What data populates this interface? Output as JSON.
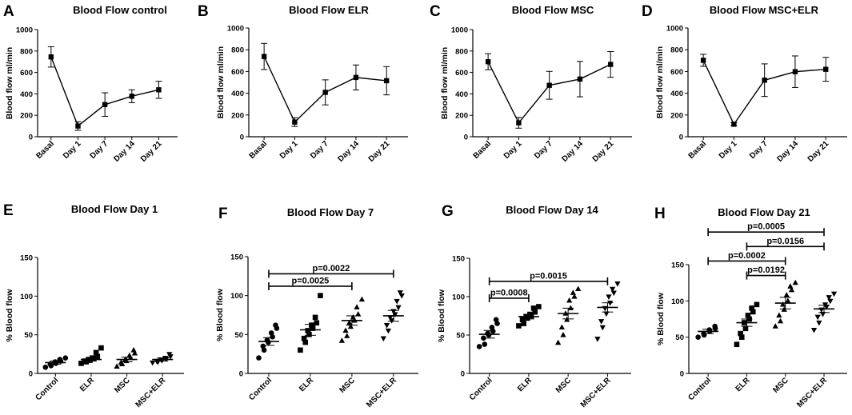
{
  "chart_data": [
    {
      "panel": "A",
      "type": "line",
      "title": "Blood Flow control",
      "ylabel": "Blood flow ml/min",
      "ylim": [
        0,
        1000
      ],
      "yticks": [
        "0",
        "200",
        "400",
        "600",
        "800",
        "1000"
      ],
      "categories": [
        "Basal",
        "Day 1",
        "Day 7",
        "Day 14",
        "Day 21"
      ],
      "values": [
        745,
        100,
        300,
        378,
        438
      ],
      "errors": [
        95,
        40,
        110,
        60,
        80
      ]
    },
    {
      "panel": "B",
      "type": "line",
      "title": "Blood Flow ELR",
      "ylabel": "Blood flow ml/min",
      "ylim": [
        0,
        1000
      ],
      "yticks": [
        "0",
        "200",
        "400",
        "600",
        "800",
        "1000"
      ],
      "categories": [
        "Basal",
        "Day 1",
        "Day 7",
        "Day 14",
        "Day 21"
      ],
      "values": [
        738,
        135,
        408,
        545,
        515
      ],
      "errors": [
        120,
        40,
        115,
        115,
        130
      ]
    },
    {
      "panel": "C",
      "type": "line",
      "title": "Blood Flow MSC",
      "ylabel": "Blood flow ml/min",
      "ylim": [
        0,
        1000
      ],
      "yticks": [
        "0",
        "200",
        "400",
        "600",
        "800",
        "1000"
      ],
      "categories": [
        "Basal",
        "Day 1",
        "Day 7",
        "Day 14",
        "Day 21"
      ],
      "values": [
        700,
        130,
        480,
        538,
        675
      ],
      "errors": [
        75,
        50,
        130,
        165,
        120
      ]
    },
    {
      "panel": "D",
      "type": "line",
      "title": "Blood Flow MSC+ELR",
      "ylabel": "Blood flow ml/min",
      "ylim": [
        0,
        1000
      ],
      "yticks": [
        "0",
        "200",
        "400",
        "600",
        "800",
        "1000"
      ],
      "categories": [
        "Basal",
        "Day 1",
        "Day 7",
        "Day 14",
        "Day 21"
      ],
      "values": [
        703,
        115,
        520,
        598,
        620
      ],
      "errors": [
        55,
        15,
        150,
        145,
        110
      ]
    },
    {
      "panel": "E",
      "type": "scatter",
      "title": "Blood Flow Day 1",
      "ylabel": "% Blood flow",
      "ylim": [
        0,
        150
      ],
      "yticks": [
        "0",
        "50",
        "100",
        "150"
      ],
      "categories": [
        "Control",
        "ELR",
        "MSC",
        "MSC+ELR"
      ],
      "markers": [
        "circle",
        "square",
        "triangle",
        "triangle-down"
      ],
      "series": [
        {
          "name": "Control",
          "points": [
            8,
            10,
            12,
            13,
            15,
            16,
            18,
            20
          ],
          "mean": 14,
          "sem": 2
        },
        {
          "name": "ELR",
          "points": [
            13,
            15,
            16,
            17,
            18,
            19,
            20,
            22,
            27,
            33
          ],
          "mean": 18,
          "sem": 2
        },
        {
          "name": "MSC",
          "points": [
            9,
            12,
            14,
            16,
            18,
            20,
            23,
            26,
            30
          ],
          "mean": 18,
          "sem": 3
        },
        {
          "name": "MSC+ELR",
          "points": [
            14,
            15,
            16,
            17,
            18,
            19,
            20,
            22,
            25
          ],
          "mean": 18,
          "sem": 2
        }
      ],
      "comparisons": []
    },
    {
      "panel": "F",
      "type": "scatter",
      "title": "Blood Flow Day 7",
      "ylabel": "% Blood flow",
      "ylim": [
        0,
        150
      ],
      "yticks": [
        "0",
        "50",
        "100",
        "150"
      ],
      "categories": [
        "Control",
        "ELR",
        "MSC",
        "MSC+ELR"
      ],
      "markers": [
        "circle",
        "square",
        "triangle",
        "triangle-down"
      ],
      "series": [
        {
          "name": "Control",
          "points": [
            20,
            30,
            35,
            40,
            43,
            47,
            52,
            58,
            62
          ],
          "mean": 41,
          "sem": 5
        },
        {
          "name": "ELR",
          "points": [
            30,
            40,
            45,
            50,
            55,
            58,
            62,
            65,
            72,
            100
          ],
          "mean": 56,
          "sem": 7
        },
        {
          "name": "MSC",
          "points": [
            42,
            48,
            55,
            60,
            65,
            68,
            72,
            76,
            85,
            95
          ],
          "mean": 68,
          "sem": 6
        },
        {
          "name": "MSC+ELR",
          "points": [
            45,
            55,
            62,
            68,
            72,
            76,
            80,
            85,
            93,
            100,
            104
          ],
          "mean": 74,
          "sem": 7
        }
      ],
      "comparisons": [
        {
          "from": 0,
          "to": 3,
          "label": "p=0.0022",
          "y": 128
        },
        {
          "from": 0,
          "to": 2,
          "label": "p=0.0025",
          "y": 112
        }
      ]
    },
    {
      "panel": "G",
      "type": "scatter",
      "title": "Blood Flow Day 14",
      "ylabel": "% Blood flow",
      "ylim": [
        0,
        150
      ],
      "yticks": [
        "0",
        "50",
        "100",
        "150"
      ],
      "categories": [
        "Control",
        "ELR",
        "MSC",
        "MSC+ELR"
      ],
      "markers": [
        "circle",
        "square",
        "triangle",
        "triangle-down"
      ],
      "series": [
        {
          "name": "Control",
          "points": [
            35,
            38,
            46,
            50,
            52,
            55,
            60,
            65,
            70
          ],
          "mean": 51,
          "sem": 5
        },
        {
          "name": "ELR",
          "points": [
            62,
            65,
            70,
            72,
            74,
            75,
            77,
            80,
            85,
            87
          ],
          "mean": 74,
          "sem": 3
        },
        {
          "name": "MSC",
          "points": [
            40,
            50,
            60,
            70,
            78,
            85,
            95,
            100,
            105,
            110
          ],
          "mean": 78,
          "sem": 7
        },
        {
          "name": "MSC+ELR",
          "points": [
            45,
            60,
            68,
            78,
            85,
            92,
            100,
            105,
            110,
            117
          ],
          "mean": 86,
          "sem": 6
        }
      ],
      "comparisons": [
        {
          "from": 0,
          "to": 3,
          "label": "p=0.0015",
          "y": 120
        },
        {
          "from": 0,
          "to": 1,
          "label": "p=0.0008",
          "y": 98
        }
      ]
    },
    {
      "panel": "H",
      "type": "scatter",
      "title": "Blood Flow Day 21",
      "ylabel": "% Blood flow",
      "ylim": [
        0,
        150
      ],
      "yticks": [
        "0",
        "50",
        "100",
        "150"
      ],
      "categories": [
        "Control",
        "ELR",
        "MSC",
        "MSC+ELR"
      ],
      "markers": [
        "circle",
        "square",
        "triangle",
        "triangle-down"
      ],
      "series": [
        {
          "name": "Control",
          "points": [
            50,
            53,
            55,
            58,
            60,
            62,
            65
          ],
          "mean": 58,
          "sem": 3
        },
        {
          "name": "ELR",
          "points": [
            40,
            50,
            55,
            62,
            70,
            75,
            80,
            85,
            90,
            95
          ],
          "mean": 70,
          "sem": 5
        },
        {
          "name": "MSC",
          "points": [
            65,
            72,
            80,
            88,
            95,
            100,
            108,
            115,
            120,
            125
          ],
          "mean": 97,
          "sem": 8
        },
        {
          "name": "MSC+ELR",
          "points": [
            60,
            70,
            78,
            82,
            88,
            92,
            95,
            100,
            105,
            110
          ],
          "mean": 89,
          "sem": 5
        }
      ],
      "comparisons": [
        {
          "from": 0,
          "to": 3,
          "label": "p=0.0005",
          "y": 195
        },
        {
          "from": 1,
          "to": 3,
          "label": "p=0.0156",
          "y": 175
        },
        {
          "from": 0,
          "to": 2,
          "label": "p=0.0002",
          "y": 155
        },
        {
          "from": 1,
          "to": 2,
          "label": "p=0.0192",
          "y": 135
        }
      ]
    }
  ]
}
